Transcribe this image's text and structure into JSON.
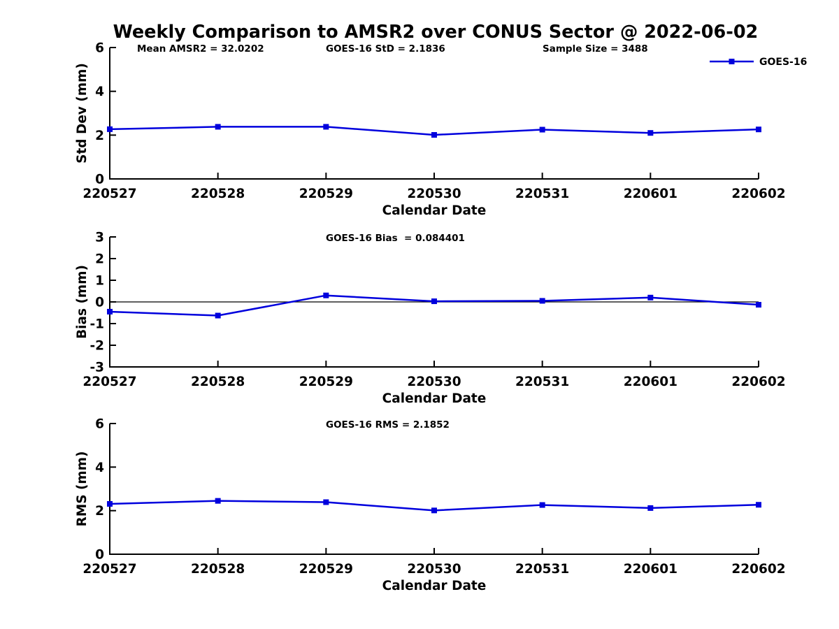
{
  "title": "Weekly Comparison to AMSR2 over CONUS Sector @ 2022-06-02",
  "colors": {
    "series": "#0000dd",
    "axis": "#000000",
    "text": "#000000",
    "background": "#ffffff"
  },
  "chart_data": [
    {
      "type": "line",
      "panel": "std-dev",
      "title": "",
      "xlabel": "Calendar Date",
      "ylabel": "Std Dev (mm)",
      "ylim": [
        0,
        6
      ],
      "yticks": [
        0,
        2,
        4,
        6
      ],
      "grid": false,
      "categories": [
        "220527",
        "220528",
        "220529",
        "220530",
        "220531",
        "220601",
        "220602"
      ],
      "series": [
        {
          "name": "GOES-16",
          "color": "#0000dd",
          "marker": "square",
          "values": [
            2.27,
            2.38,
            2.38,
            2.01,
            2.25,
            2.1,
            2.26
          ]
        }
      ],
      "annotations": [
        {
          "text": "Mean AMSR2 = 32.0202"
        },
        {
          "text": "GOES-16 StD = 2.1836"
        },
        {
          "text": "Sample Size = 3488"
        }
      ],
      "legend": {
        "label": "GOES-16",
        "position": "top-right"
      }
    },
    {
      "type": "line",
      "panel": "bias",
      "title": "",
      "xlabel": "Calendar Date",
      "ylabel": "Bias (mm)",
      "ylim": [
        -3,
        3
      ],
      "yticks": [
        3,
        2,
        1,
        0,
        -1,
        -2,
        -3
      ],
      "grid": false,
      "zero_line": true,
      "categories": [
        "220527",
        "220528",
        "220529",
        "220530",
        "220531",
        "220601",
        "220602"
      ],
      "series": [
        {
          "name": "GOES-16",
          "color": "#0000dd",
          "marker": "square",
          "values": [
            -0.45,
            -0.63,
            0.3,
            0.03,
            0.05,
            0.2,
            -0.13
          ]
        }
      ],
      "annotations": [
        {
          "text": "GOES-16 Bias  = 0.084401"
        }
      ]
    },
    {
      "type": "line",
      "panel": "rms",
      "title": "",
      "xlabel": "Calendar Date",
      "ylabel": "RMS (mm)",
      "ylim": [
        0,
        6
      ],
      "yticks": [
        0,
        2,
        4,
        6
      ],
      "grid": false,
      "categories": [
        "220527",
        "220528",
        "220529",
        "220530",
        "220531",
        "220601",
        "220602"
      ],
      "series": [
        {
          "name": "GOES-16",
          "color": "#0000dd",
          "marker": "square",
          "values": [
            2.31,
            2.45,
            2.39,
            2.01,
            2.26,
            2.12,
            2.27
          ]
        }
      ],
      "annotations": [
        {
          "text": "GOES-16 RMS = 2.1852"
        }
      ]
    }
  ]
}
